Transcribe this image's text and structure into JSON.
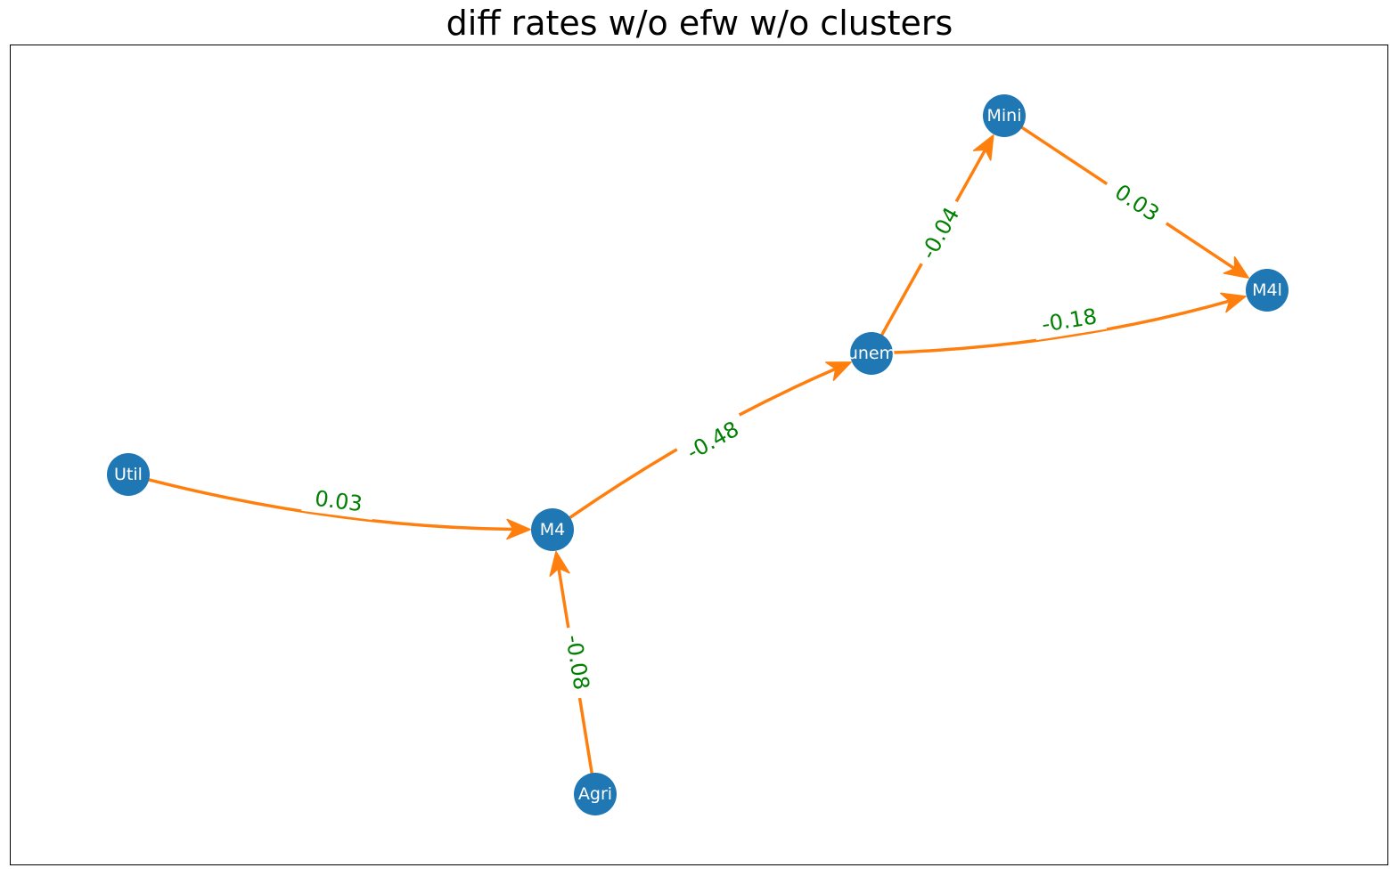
{
  "title": "diff rates w/o efw w/o clusters",
  "colors": {
    "node": "#1f77b4",
    "node_text": "#ffffff",
    "edge": "#ff7f0e",
    "edge_label": "#008000",
    "frame": "#000000"
  },
  "nodes": [
    {
      "id": "Mini",
      "label": "Mini"
    },
    {
      "id": "M4l",
      "label": "M4l"
    },
    {
      "id": "unem",
      "label": "unem"
    },
    {
      "id": "Util",
      "label": "Util"
    },
    {
      "id": "M4",
      "label": "M4"
    },
    {
      "id": "Agri",
      "label": "Agri"
    }
  ],
  "edges": [
    {
      "source": "Util",
      "target": "M4",
      "weight": "0.03"
    },
    {
      "source": "Agri",
      "target": "M4",
      "weight": "-0.08"
    },
    {
      "source": "M4",
      "target": "unem",
      "weight": "-0.48"
    },
    {
      "source": "unem",
      "target": "Mini",
      "weight": "-0.04"
    },
    {
      "source": "unem",
      "target": "M4l",
      "weight": "-0.18"
    },
    {
      "source": "Mini",
      "target": "M4l",
      "weight": "0.03"
    }
  ]
}
